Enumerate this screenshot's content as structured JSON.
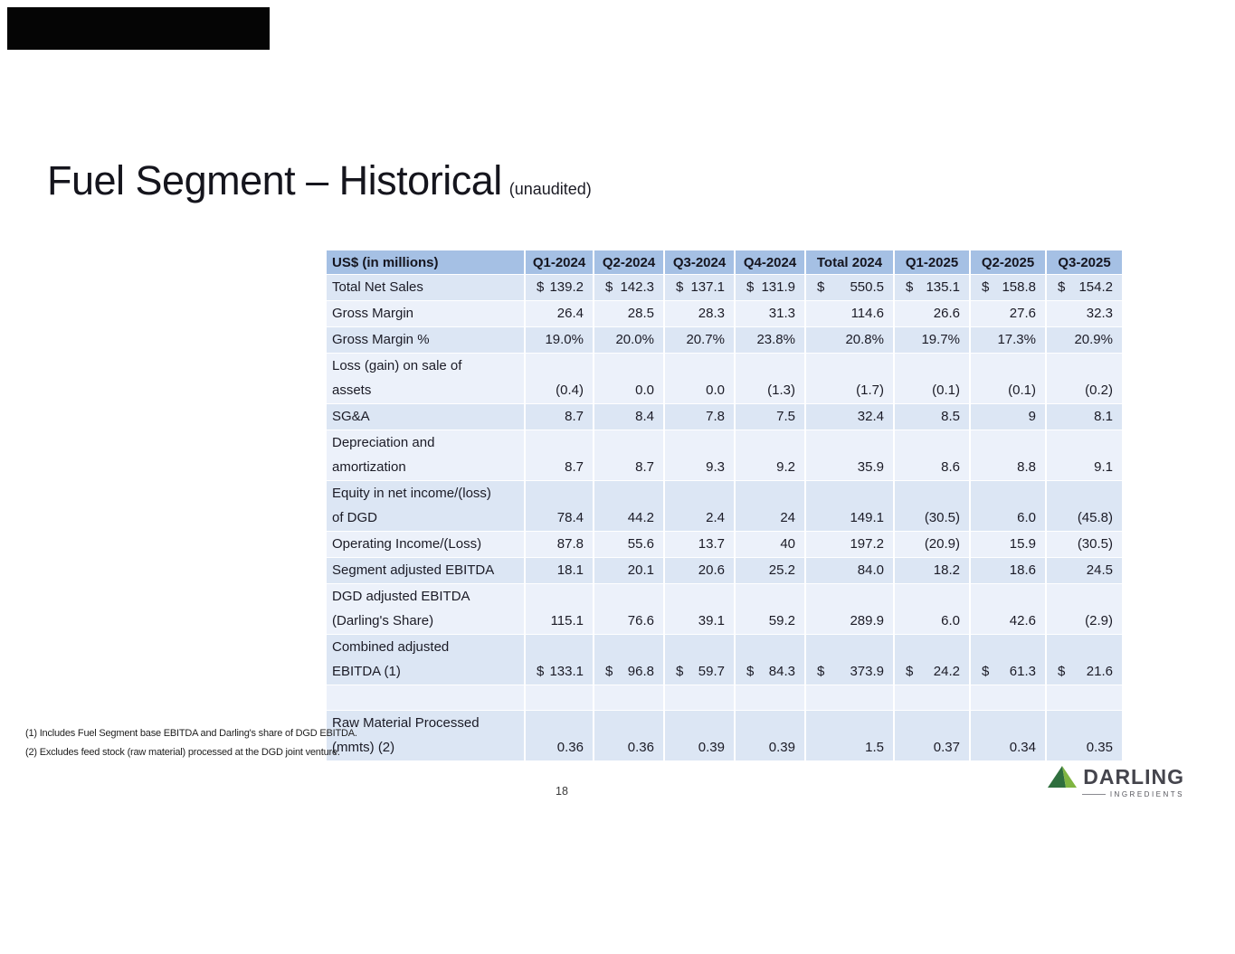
{
  "slide": {
    "title": "Fuel Segment – Historical",
    "title_suffix": "(unaudited)",
    "page_number": "18",
    "footnote_1": "(1) Includes Fuel Segment base EBITDA and Darling's share of DGD EBITDA.",
    "footnote_2": "(2) Excludes feed stock (raw material) processed at the DGD joint venture.",
    "logo_text": "DARLING",
    "logo_subtext": "INGREDIENTS",
    "colors": {
      "header_bg": "#a5c0e4",
      "band_dark": "#dce6f4",
      "band_light": "#ecf1fa",
      "logo_green_dark": "#2f6f3e",
      "logo_green_light": "#7fb541"
    }
  },
  "table": {
    "header": [
      "US$ (in millions)",
      "Q1-2024",
      "Q2-2024",
      "Q3-2024",
      "Q4-2024",
      "Total 2024",
      "Q1-2025",
      "Q2-2025",
      "Q3-2025"
    ],
    "rows": [
      {
        "label": "Total Net Sales",
        "dollar": true,
        "values": [
          "139.2",
          "142.3",
          "137.1",
          "131.9",
          "550.5",
          "135.1",
          "158.8",
          "154.2"
        ]
      },
      {
        "label": "Gross Margin",
        "dollar": false,
        "values": [
          "26.4",
          "28.5",
          "28.3",
          "31.3",
          "114.6",
          "26.6",
          "27.6",
          "32.3"
        ]
      },
      {
        "label": "Gross Margin %",
        "dollar": false,
        "values": [
          "19.0%",
          "20.0%",
          "20.7%",
          "23.8%",
          "20.8%",
          "19.7%",
          "17.3%",
          "20.9%"
        ]
      },
      {
        "label": "Loss (gain) on sale of\nassets",
        "dollar": false,
        "values": [
          "(0.4)",
          "0.0",
          "0.0",
          "(1.3)",
          "(1.7)",
          "(0.1)",
          "(0.1)",
          "(0.2)"
        ]
      },
      {
        "label": "SG&A",
        "dollar": false,
        "values": [
          "8.7",
          "8.4",
          "7.8",
          "7.5",
          "32.4",
          "8.5",
          "9",
          "8.1"
        ]
      },
      {
        "label": "Depreciation and\namortization",
        "dollar": false,
        "values": [
          "8.7",
          "8.7",
          "9.3",
          "9.2",
          "35.9",
          "8.6",
          "8.8",
          "9.1"
        ]
      },
      {
        "label": "Equity in net income/(loss)\nof DGD",
        "dollar": false,
        "values": [
          "78.4",
          "44.2",
          "2.4",
          "24",
          "149.1",
          "(30.5)",
          "6.0",
          "(45.8)"
        ]
      },
      {
        "label": "Operating Income/(Loss)",
        "dollar": false,
        "values": [
          "87.8",
          "55.6",
          "13.7",
          "40",
          "197.2",
          "(20.9)",
          "15.9",
          "(30.5)"
        ]
      },
      {
        "label": "Segment adjusted EBITDA",
        "dollar": false,
        "values": [
          "18.1",
          "20.1",
          "20.6",
          "25.2",
          "84.0",
          "18.2",
          "18.6",
          "24.5"
        ]
      },
      {
        "label": "DGD adjusted EBITDA\n(Darling's Share)",
        "dollar": false,
        "values": [
          "115.1",
          "76.6",
          "39.1",
          "59.2",
          "289.9",
          "6.0",
          "42.6",
          "(2.9)"
        ]
      },
      {
        "label": "Combined adjusted\nEBITDA (1)",
        "dollar": true,
        "values": [
          "133.1",
          "96.8",
          "59.7",
          "84.3",
          "373.9",
          "24.2",
          "61.3",
          "21.6"
        ]
      },
      {
        "label": "",
        "dollar": false,
        "values": [
          "",
          "",
          "",
          "",
          "",
          "",
          "",
          ""
        ]
      },
      {
        "label": "Raw Material Processed\n(mmts) (2)",
        "dollar": false,
        "values": [
          "0.36",
          "0.36",
          "0.39",
          "0.39",
          "1.5",
          "0.37",
          "0.34",
          "0.35"
        ]
      }
    ]
  }
}
